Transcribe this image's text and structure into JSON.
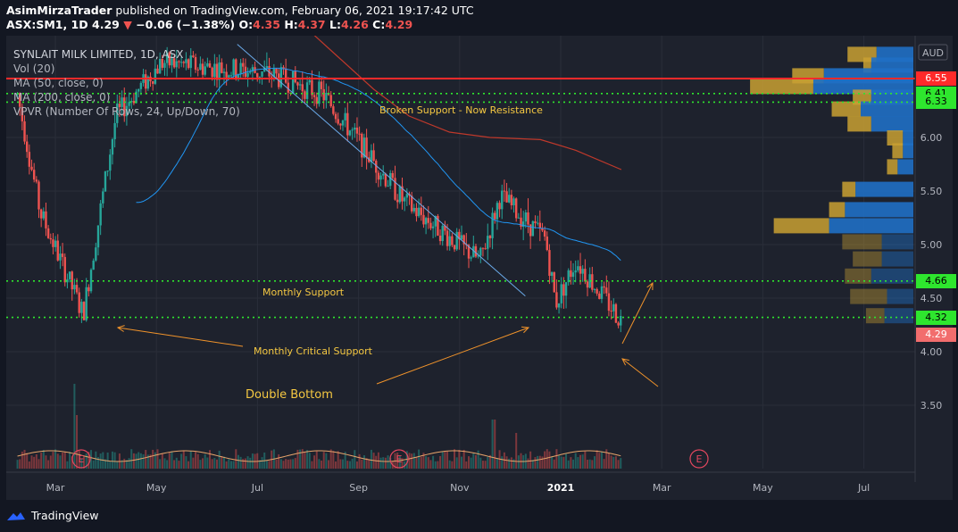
{
  "header": {
    "author": "AsimMirzaTrader",
    "published_text": "published on TradingView.com, February 06, 2021 19:17:42 UTC",
    "symbol": "ASX:SM1, 1D",
    "last": "4.29",
    "change": "−0.06 (−1.38%)",
    "ohlc": {
      "o": "4.35",
      "h": "4.37",
      "l": "4.26",
      "c": "4.29"
    }
  },
  "legend": {
    "title": "SYNLAIT MILK LIMITED, 1D, ASX",
    "vol": "Vol (20)",
    "ma50": "MA (50, close, 0)",
    "ma200": "MA (200, close, 0)",
    "vpvr": "VPVR (Number Of Rows, 24, Up/Down, 70)"
  },
  "currency": "AUD",
  "annotations": {
    "resistance": "Broken Support - Now Resistance",
    "monthly_support": "Monthly Support",
    "monthly_critical": "Monthly Critical Support",
    "double_bottom": "Double Bottom",
    "earnings_marker": "E"
  },
  "price_tags": {
    "p655": "6.55",
    "p641": "6.41",
    "p633": "6.33",
    "p466": "4.66",
    "p432": "4.32",
    "p429": "4.29"
  },
  "colors": {
    "up": "#26a69a",
    "down": "#ef5350",
    "resistance_line": "#ff2a2a",
    "support_lines": "#2ee62e",
    "ma50": "#2196f3",
    "ma200": "#c0392b",
    "annotation_text": "#f5c842",
    "arrows": "#f0932b"
  },
  "footer": {
    "brand": "TradingView"
  },
  "chart_data": {
    "type": "candlestick",
    "title": "SYNLAIT MILK LIMITED, 1D, ASX",
    "x_ticks": [
      "Mar",
      "May",
      "Jul",
      "Sep",
      "Nov",
      "2021",
      "Mar",
      "May",
      "Jul"
    ],
    "y_ticks": [
      "6.00",
      "5.50",
      "5.00",
      "4.50",
      "4.00",
      "3.50"
    ],
    "ylim": [
      3.02,
      6.95
    ],
    "levels": [
      {
        "label": "Broken Support - Now Resistance",
        "value": 6.55
      },
      {
        "label": "",
        "value": 6.41
      },
      {
        "label": "",
        "value": 6.33
      },
      {
        "label": "Monthly Support",
        "value": 4.66
      },
      {
        "label": "Monthly Critical Support",
        "value": 4.32
      }
    ],
    "last_close": 4.29,
    "close_trajectory": [
      {
        "x": "Feb 2020",
        "y": 6.4
      },
      {
        "x": "Mar 2020",
        "y": 5.1
      },
      {
        "x": "Mar 2020",
        "y": 4.35
      },
      {
        "x": "Apr 2020",
        "y": 6.3
      },
      {
        "x": "May 2020",
        "y": 6.6
      },
      {
        "x": "Jul 2020",
        "y": 6.7
      },
      {
        "x": "Aug 2020",
        "y": 6.4
      },
      {
        "x": "Sep 2020",
        "y": 5.8
      },
      {
        "x": "Oct 2020",
        "y": 5.2
      },
      {
        "x": "Nov 2020",
        "y": 4.85
      },
      {
        "x": "Nov 2020",
        "y": 5.4
      },
      {
        "x": "Dec 2020",
        "y": 5.15
      },
      {
        "x": "Dec 2020",
        "y": 4.45
      },
      {
        "x": "Jan 2021",
        "y": 4.9
      },
      {
        "x": "Feb 2021",
        "y": 4.29
      }
    ],
    "vpvr_rows": [
      {
        "price": 6.78,
        "up": 0.55,
        "down": 0.7
      },
      {
        "price": 6.68,
        "up": 0.15,
        "down": 0.8
      },
      {
        "price": 6.58,
        "up": 0.6,
        "down": 1.7
      },
      {
        "price": 6.48,
        "up": 1.2,
        "down": 1.9
      },
      {
        "price": 6.38,
        "up": 0.35,
        "down": 0.8
      },
      {
        "price": 6.27,
        "up": 0.55,
        "down": 1.0
      },
      {
        "price": 6.13,
        "up": 0.45,
        "down": 0.8
      },
      {
        "price": 6.0,
        "up": 0.3,
        "down": 0.2
      },
      {
        "price": 5.88,
        "up": 0.2,
        "down": 0.2
      },
      {
        "price": 5.73,
        "up": 0.2,
        "down": 0.3
      },
      {
        "price": 5.52,
        "up": 0.25,
        "down": 1.1
      },
      {
        "price": 5.33,
        "up": 0.3,
        "down": 1.3
      },
      {
        "price": 5.18,
        "up": 1.05,
        "down": 1.6
      },
      {
        "price": 5.03,
        "up": 0.75,
        "down": 0.6
      },
      {
        "price": 4.87,
        "up": 0.55,
        "down": 0.6
      },
      {
        "price": 4.71,
        "up": 0.5,
        "down": 0.8
      },
      {
        "price": 4.52,
        "up": 0.7,
        "down": 0.5
      },
      {
        "price": 4.34,
        "up": 0.35,
        "down": 0.55
      }
    ]
  }
}
